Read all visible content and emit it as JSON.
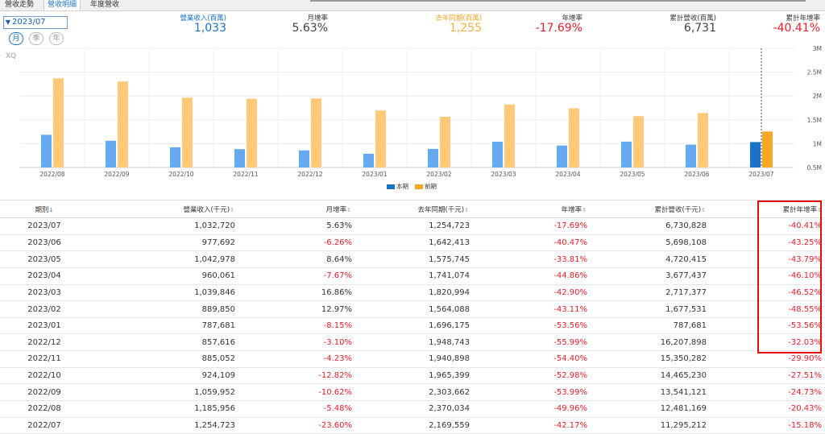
{
  "tabs": [
    "營收走勢",
    "營收明細",
    "年度營收"
  ],
  "period_select": "2023/07",
  "period_pills": [
    "月",
    "季",
    "年"
  ],
  "chart_source_label": "XQ",
  "stats": [
    {
      "label": "營業收入(百萬)",
      "value": "1,033"
    },
    {
      "label": "月增率",
      "value": "5.63%"
    },
    {
      "label": "去年同期(百萬)",
      "value": "1,255"
    },
    {
      "label": "年增率",
      "value": "-17.69%"
    },
    {
      "label": "累計營收(百萬)",
      "value": "6,731"
    },
    {
      "label": "累計年增率",
      "value": "-40.41%"
    }
  ],
  "chart_data": {
    "type": "bar",
    "categories": [
      "2022/08",
      "2022/09",
      "2022/10",
      "2022/11",
      "2022/12",
      "2023/01",
      "2023/02",
      "2023/03",
      "2023/04",
      "2023/05",
      "2023/06",
      "2023/07"
    ],
    "series": [
      {
        "name": "本期",
        "values": [
          1.186,
          1.06,
          0.924,
          0.885,
          0.858,
          0.788,
          0.89,
          1.04,
          0.96,
          1.043,
          0.978,
          1.033
        ]
      },
      {
        "name": "前期",
        "values": [
          2.37,
          2.304,
          1.965,
          1.941,
          1.949,
          1.696,
          1.564,
          1.821,
          1.741,
          1.576,
          1.642,
          1.255
        ]
      }
    ],
    "y_tick_labels": [
      "3M",
      "2.5M",
      "2M",
      "1.5M",
      "1M",
      "0.5M"
    ],
    "ylim": [
      0.5,
      3.0
    ],
    "legend": [
      "本期",
      "前期"
    ],
    "colors": {
      "current": "#64aaf0",
      "previous": "#ffc978",
      "current_selected": "#1a73c8",
      "previous_selected": "#f9a825"
    }
  },
  "table": {
    "headers": [
      "期別",
      "營業收入(千元)",
      "月增率",
      "去年同期(千元)",
      "年增率",
      "累計營收(千元)",
      "累計年增率"
    ],
    "rows": [
      [
        "2023/07",
        "1,032,720",
        "5.63%",
        "1,254,723",
        "-17.69%",
        "6,730,828",
        "-40.41%"
      ],
      [
        "2023/06",
        "977,692",
        "-6.26%",
        "1,642,413",
        "-40.47%",
        "5,698,108",
        "-43.25%"
      ],
      [
        "2023/05",
        "1,042,978",
        "8.64%",
        "1,575,745",
        "-33.81%",
        "4,720,415",
        "-43.79%"
      ],
      [
        "2023/04",
        "960,061",
        "-7.67%",
        "1,741,074",
        "-44.86%",
        "3,677,437",
        "-46.10%"
      ],
      [
        "2023/03",
        "1,039,846",
        "16.86%",
        "1,820,994",
        "-42.90%",
        "2,717,377",
        "-46.52%"
      ],
      [
        "2023/02",
        "889,850",
        "12.97%",
        "1,564,088",
        "-43.11%",
        "1,677,531",
        "-48.55%"
      ],
      [
        "2023/01",
        "787,681",
        "-8.15%",
        "1,696,175",
        "-53.56%",
        "787,681",
        "-53.56%"
      ],
      [
        "2022/12",
        "857,616",
        "-3.10%",
        "1,948,743",
        "-55.99%",
        "16,207,898",
        "-32.03%"
      ],
      [
        "2022/11",
        "885,052",
        "-4.23%",
        "1,940,898",
        "-54.40%",
        "15,350,282",
        "-29.90%"
      ],
      [
        "2022/10",
        "924,109",
        "-12.82%",
        "1,965,399",
        "-52.98%",
        "14,465,230",
        "-27.51%"
      ],
      [
        "2022/09",
        "1,059,952",
        "-10.62%",
        "2,303,662",
        "-53.99%",
        "13,541,121",
        "-24.73%"
      ],
      [
        "2022/08",
        "1,185,956",
        "-5.48%",
        "2,370,034",
        "-49.96%",
        "12,481,169",
        "-20.43%"
      ],
      [
        "2022/07",
        "1,254,723",
        "-23.60%",
        "2,169,559",
        "-42.17%",
        "11,295,212",
        "-15.18%"
      ]
    ]
  }
}
